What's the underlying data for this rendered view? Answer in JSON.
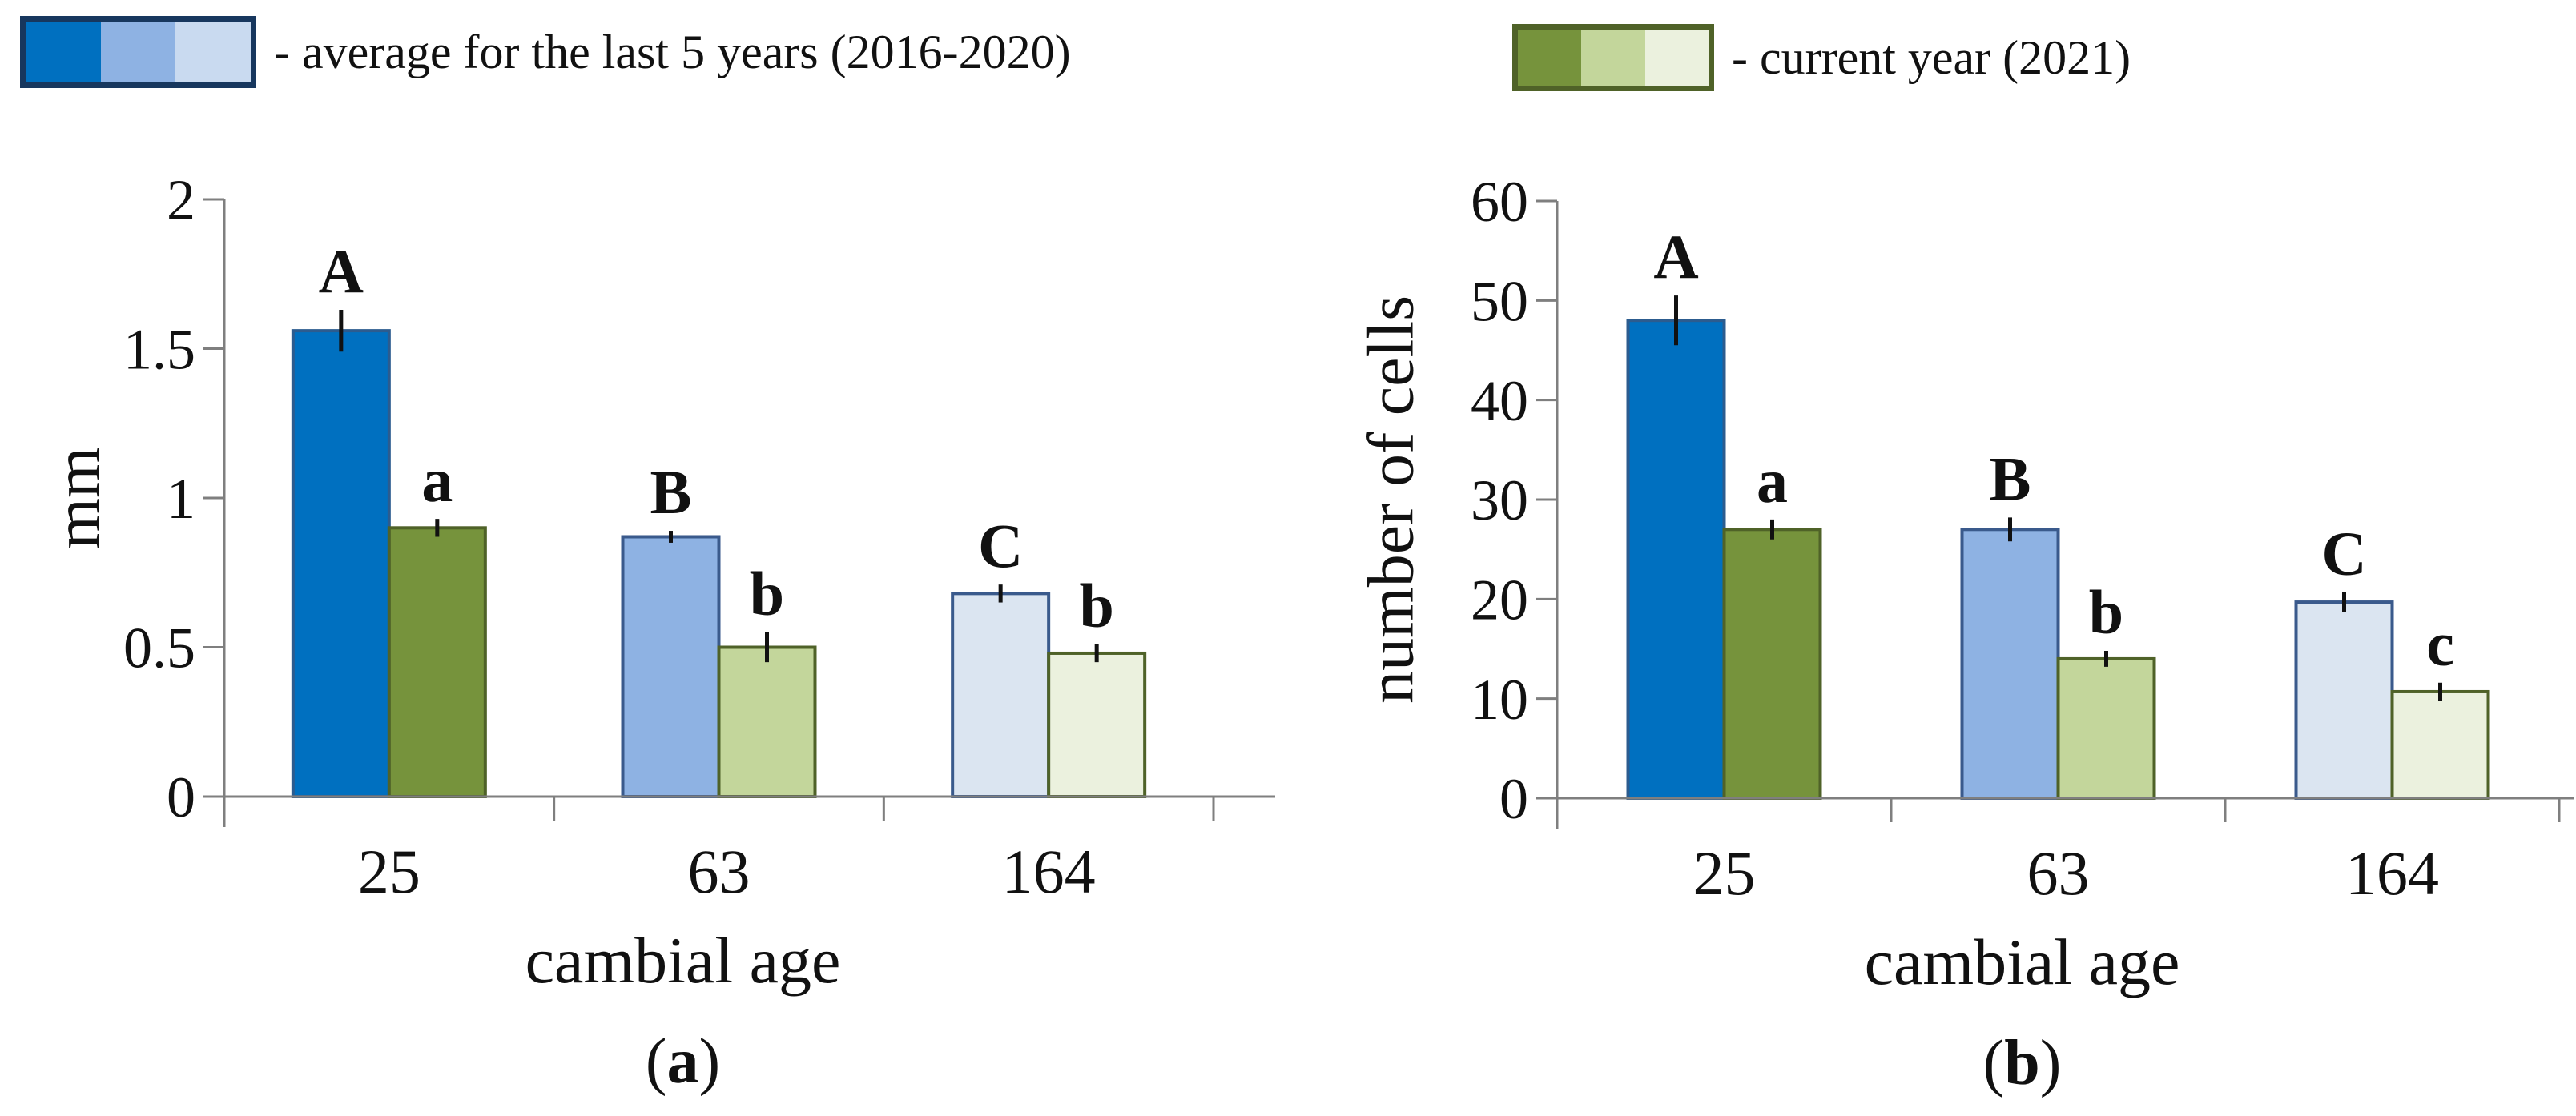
{
  "figure": {
    "colors": {
      "axis": "#7F7F7F",
      "text": "#111111",
      "error_bar": "#111111",
      "blue_dark": "#0070C0",
      "blue_medium": "#8EB2E3",
      "blue_light": "#DBE5F1",
      "green_dark": "#76933C",
      "green_medium": "#C3D69B",
      "green_light": "#EBF1DE"
    },
    "legend": {
      "items": [
        {
          "label": "- average for the last 5 years (2016-2020)",
          "swatch_colors": [
            "#0070C0",
            "#8EB2E3",
            "#C9DAF0"
          ],
          "border_color": "#17375E"
        },
        {
          "label": "- current year (2021)",
          "swatch_colors": [
            "#76933C",
            "#C3D69B",
            "#EBF1DE"
          ],
          "border_color": "#4F6228"
        }
      ]
    }
  },
  "chart_data": [
    {
      "id": "a",
      "type": "bar",
      "caption_open": "(",
      "caption_letter": "a",
      "caption_close": ")",
      "xlabel": "cambial age",
      "ylabel": "mm",
      "categories": [
        "25",
        "63",
        "164"
      ],
      "ylim": [
        0,
        2
      ],
      "ytick_values": [
        0,
        0.5,
        1,
        1.5,
        2
      ],
      "ytick_labels": [
        "0",
        "0.5",
        "1",
        "1.5",
        "2"
      ],
      "grid": false,
      "legend_position": "top",
      "series": [
        {
          "name": "average for the last 5 years (2016-2020)",
          "values": [
            1.56,
            0.87,
            0.68
          ],
          "errors": [
            0.07,
            0.02,
            0.03
          ],
          "letters": [
            "A",
            "B",
            "C"
          ],
          "fills": [
            "#0070C0",
            "#8EB2E3",
            "#DBE5F1"
          ],
          "strokes": [
            "#2C5C8F",
            "#3A5A8C",
            "#3A5A8C"
          ]
        },
        {
          "name": "current year (2021)",
          "values": [
            0.9,
            0.5,
            0.48
          ],
          "errors": [
            0.03,
            0.05,
            0.03
          ],
          "letters": [
            "a",
            "b",
            "b"
          ],
          "fills": [
            "#76933C",
            "#C3D69B",
            "#EBF1DE"
          ],
          "strokes": [
            "#4F6228",
            "#4F6228",
            "#4F6228"
          ]
        }
      ]
    },
    {
      "id": "b",
      "type": "bar",
      "caption_open": "(",
      "caption_letter": "b",
      "caption_close": ")",
      "xlabel": "cambial age",
      "ylabel": "number of cells",
      "categories": [
        "25",
        "63",
        "164"
      ],
      "ylim": [
        0,
        60
      ],
      "ytick_values": [
        0,
        10,
        20,
        30,
        40,
        50,
        60
      ],
      "ytick_labels": [
        "0",
        "10",
        "20",
        "30",
        "40",
        "50",
        "60"
      ],
      "grid": false,
      "legend_position": "top",
      "series": [
        {
          "name": "average for the last 5 years (2016-2020)",
          "values": [
            48,
            27,
            19.7
          ],
          "errors": [
            2.5,
            1.2,
            1.0
          ],
          "letters": [
            "A",
            "B",
            "C"
          ],
          "fills": [
            "#0070C0",
            "#8EB2E3",
            "#DBE5F1"
          ],
          "strokes": [
            "#2C5C8F",
            "#3A5A8C",
            "#3A5A8C"
          ]
        },
        {
          "name": "current year (2021)",
          "values": [
            27,
            14,
            10.7
          ],
          "errors": [
            1.0,
            0.8,
            0.9
          ],
          "letters": [
            "a",
            "b",
            "c"
          ],
          "fills": [
            "#4F6228",
            "#C3D69B",
            "#EBF1DE"
          ],
          "strokes": [
            "#4F6228",
            "#4F6228",
            "#4F6228"
          ]
        }
      ]
    }
  ]
}
